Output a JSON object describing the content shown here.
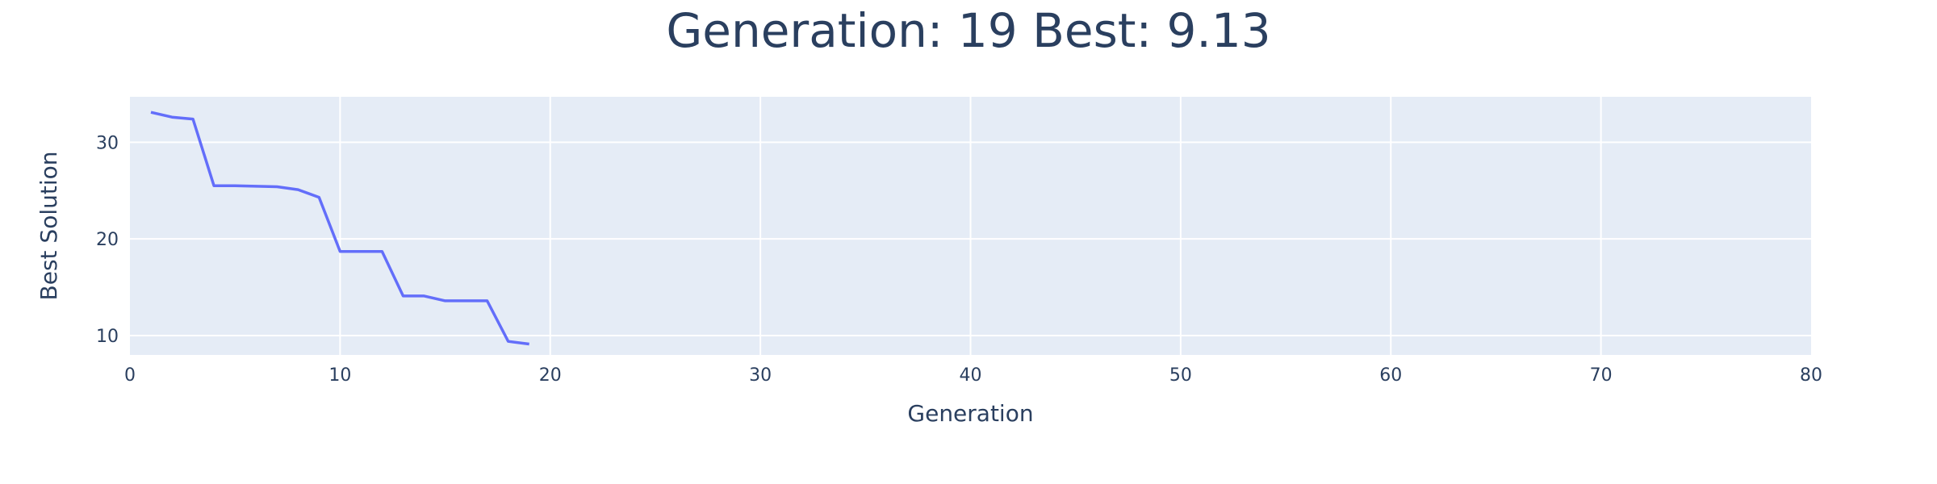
{
  "chart_data": {
    "type": "line",
    "title": "Generation: 19 Best: 9.13",
    "xlabel": "Generation",
    "ylabel": "Best Solution",
    "xlim": [
      0,
      80
    ],
    "ylim": [
      8,
      34.7
    ],
    "x_ticks": [
      0,
      10,
      20,
      30,
      40,
      50,
      60,
      70,
      80
    ],
    "y_ticks": [
      10,
      20,
      30
    ],
    "grid": true,
    "legend": "none",
    "series": [
      {
        "x": [
          1,
          2,
          3,
          4,
          5,
          6,
          7,
          8,
          9,
          10,
          11,
          12,
          13,
          14,
          15,
          16,
          17,
          18,
          19
        ],
        "values": [
          33.1,
          32.6,
          32.4,
          25.5,
          25.5,
          25.45,
          25.4,
          25.1,
          24.3,
          18.7,
          18.7,
          18.7,
          14.1,
          14.1,
          13.6,
          13.6,
          13.6,
          9.4,
          9.13
        ]
      }
    ],
    "colors": {
      "line": "#636efa",
      "plot_bg": "#e5ecf6",
      "grid": "#ffffff",
      "text": "#2a3f5f"
    }
  }
}
